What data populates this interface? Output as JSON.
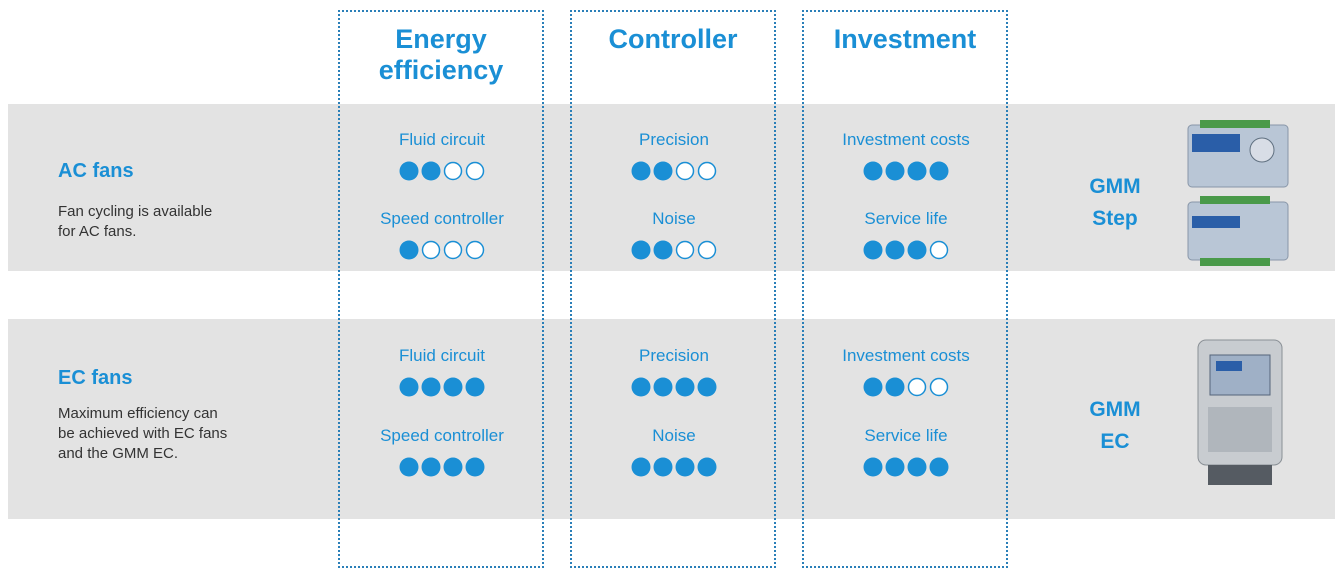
{
  "columns": [
    "Energy efficiency",
    "Controller",
    "Investment"
  ],
  "rating_max": 4,
  "color": "#1a8fd5",
  "rows": [
    {
      "name": "AC fans",
      "description": [
        "Fan cycling is available",
        "for AC fans."
      ],
      "product": [
        "GMM",
        "Step"
      ],
      "groups": [
        [
          {
            "label": "Fluid circuit",
            "rating": 2
          },
          {
            "label": "Speed controller",
            "rating": 1
          }
        ],
        [
          {
            "label": "Precision",
            "rating": 2
          },
          {
            "label": "Noise",
            "rating": 2
          }
        ],
        [
          {
            "label": "Investment costs",
            "rating": 4
          },
          {
            "label": "Service life",
            "rating": 3
          }
        ]
      ]
    },
    {
      "name": "EC fans",
      "description": [
        "Maximum efficiency can",
        "be achieved with EC fans",
        "and the GMM EC."
      ],
      "product": [
        "GMM",
        "EC"
      ],
      "groups": [
        [
          {
            "label": "Fluid circuit",
            "rating": 4
          },
          {
            "label": "Speed controller",
            "rating": 4
          }
        ],
        [
          {
            "label": "Precision",
            "rating": 4
          },
          {
            "label": "Noise",
            "rating": 4
          }
        ],
        [
          {
            "label": "Investment costs",
            "rating": 2
          },
          {
            "label": "Service life",
            "rating": 4
          }
        ]
      ]
    }
  ]
}
